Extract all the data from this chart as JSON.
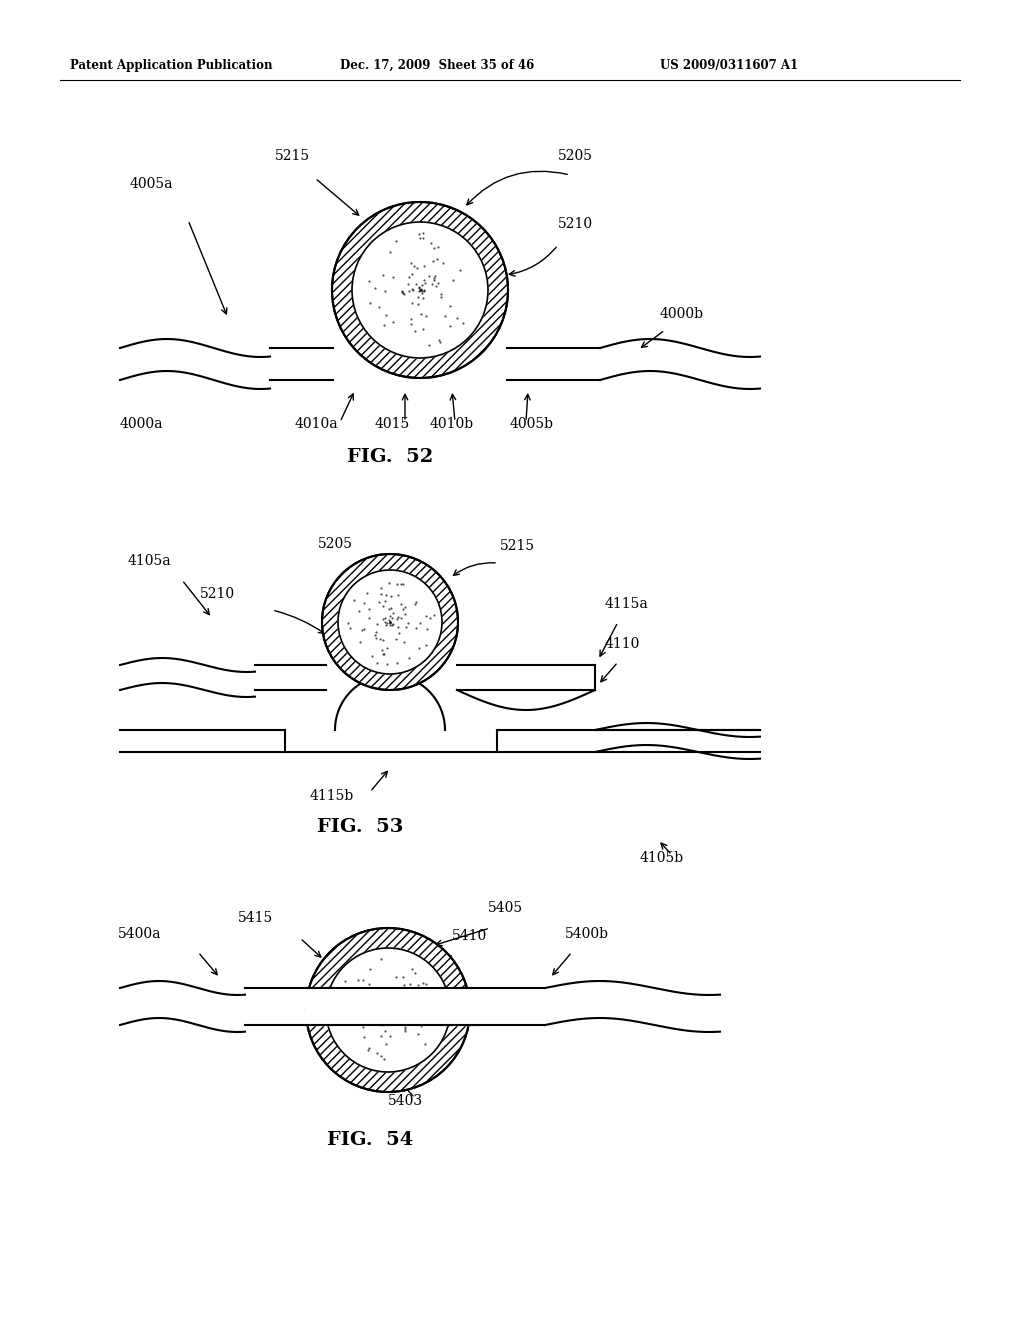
{
  "bg_color": "#ffffff",
  "header_left": "Patent Application Publication",
  "header_mid": "Dec. 17, 2009  Sheet 35 of 46",
  "header_right": "US 2009/0311607 A1",
  "fig52_title": "FIG.  52",
  "fig53_title": "FIG.  53",
  "fig54_title": "FIG.  54"
}
